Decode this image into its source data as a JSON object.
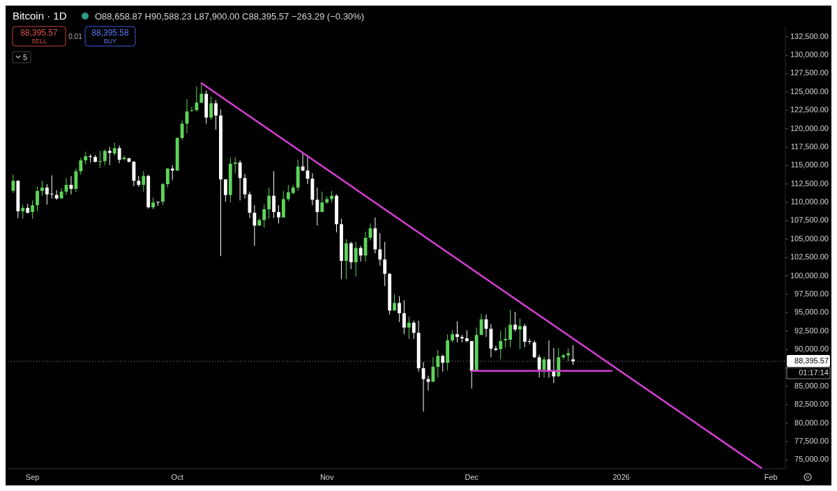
{
  "chart_data": {
    "type": "candlestick",
    "title": "Bitcoin · 1D",
    "subtitle": "O88,658.87 H90,588.23 L87,900.00 C88,395.57 −263.29 (−0.30%)",
    "annotations": [
      "88,395.57",
      "SELL",
      "0.01",
      "88,395.58",
      "BUY",
      "5",
      "01:17:14"
    ],
    "x": [
      "2025-08-28",
      "2025-08-29",
      "2025-08-30",
      "2025-08-31",
      "2025-09-01",
      "2025-09-02",
      "2025-09-03",
      "2025-09-04",
      "2025-09-05",
      "2025-09-06",
      "2025-09-07",
      "2025-09-08",
      "2025-09-09",
      "2025-09-10",
      "2025-09-11",
      "2025-09-12",
      "2025-09-13",
      "2025-09-14",
      "2025-09-15",
      "2025-09-16",
      "2025-09-17",
      "2025-09-18",
      "2025-09-19",
      "2025-09-20",
      "2025-09-21",
      "2025-09-22",
      "2025-09-23",
      "2025-09-24",
      "2025-09-25",
      "2025-09-26",
      "2025-09-27",
      "2025-09-28",
      "2025-09-29",
      "2025-09-30",
      "2025-10-01",
      "2025-10-02",
      "2025-10-03",
      "2025-10-04",
      "2025-10-05",
      "2025-10-06",
      "2025-10-07",
      "2025-10-08",
      "2025-10-09",
      "2025-10-10",
      "2025-10-11",
      "2025-10-12",
      "2025-10-13",
      "2025-10-14",
      "2025-10-15",
      "2025-10-16",
      "2025-10-17",
      "2025-10-18",
      "2025-10-19",
      "2025-10-20",
      "2025-10-21",
      "2025-10-22",
      "2025-10-23",
      "2025-10-24",
      "2025-10-25",
      "2025-10-26",
      "2025-10-27",
      "2025-10-28",
      "2025-10-29",
      "2025-10-30",
      "2025-10-31",
      "2025-11-01",
      "2025-11-02",
      "2025-11-03",
      "2025-11-04",
      "2025-11-05",
      "2025-11-06",
      "2025-11-07",
      "2025-11-08",
      "2025-11-09",
      "2025-11-10",
      "2025-11-11",
      "2025-11-12",
      "2025-11-13",
      "2025-11-14",
      "2025-11-15",
      "2025-11-16",
      "2025-11-17",
      "2025-11-18",
      "2025-11-19",
      "2025-11-20",
      "2025-11-21",
      "2025-11-22",
      "2025-11-23",
      "2025-11-24",
      "2025-11-25",
      "2025-11-26",
      "2025-11-27",
      "2025-11-28",
      "2025-11-29",
      "2025-11-30",
      "2025-12-01",
      "2025-12-02",
      "2025-12-03",
      "2025-12-04",
      "2025-12-05",
      "2025-12-06",
      "2025-12-07",
      "2025-12-08",
      "2025-12-09",
      "2025-12-10",
      "2025-12-11",
      "2025-12-12",
      "2025-12-13",
      "2025-12-14",
      "2025-12-15",
      "2025-12-16",
      "2025-12-17",
      "2025-12-18",
      "2025-12-19",
      "2025-12-20",
      "2025-12-21",
      "2025-12-22"
    ],
    "ohlc": [
      [
        111576,
        113764,
        111271,
        112930
      ],
      [
        112930,
        113000,
        107860,
        108780
      ],
      [
        108780,
        109700,
        107760,
        109240
      ],
      [
        109240,
        109800,
        108500,
        108590
      ],
      [
        108690,
        110260,
        107760,
        109610
      ],
      [
        109610,
        112100,
        108780,
        111550
      ],
      [
        111550,
        112930,
        110900,
        112010
      ],
      [
        112010,
        112470,
        109700,
        111090
      ],
      [
        111180,
        113670,
        110530,
        111090
      ],
      [
        111000,
        111640,
        110350,
        110530
      ],
      [
        110530,
        111920,
        110530,
        111460
      ],
      [
        111460,
        113300,
        111000,
        112380
      ],
      [
        112380,
        113580,
        111090,
        111830
      ],
      [
        111830,
        114590,
        111370,
        114220
      ],
      [
        114220,
        116070,
        113760,
        115700
      ],
      [
        115700,
        116900,
        115150,
        116260
      ],
      [
        116260,
        116530,
        115420,
        116160
      ],
      [
        116160,
        116440,
        115420,
        115520
      ],
      [
        115520,
        116990,
        114690,
        115610
      ],
      [
        115610,
        117180,
        115060,
        116990
      ],
      [
        116990,
        117550,
        115060,
        116720
      ],
      [
        116630,
        118100,
        116350,
        117360
      ],
      [
        117360,
        117730,
        115330,
        115790
      ],
      [
        115880,
        116350,
        115700,
        116070
      ],
      [
        115980,
        116070,
        115420,
        115520
      ],
      [
        115520,
        115610,
        112190,
        112930
      ],
      [
        112930,
        113580,
        112100,
        112380
      ],
      [
        112380,
        114220,
        111460,
        113580
      ],
      [
        113580,
        113760,
        109150,
        109330
      ],
      [
        109330,
        110630,
        109060,
        109980
      ],
      [
        110080,
        110080,
        109520,
        109980
      ],
      [
        110080,
        112650,
        109610,
        112470
      ],
      [
        112470,
        114690,
        112010,
        114590
      ],
      [
        114590,
        115060,
        113030,
        114320
      ],
      [
        114320,
        118840,
        114320,
        118750
      ],
      [
        118750,
        121150,
        118470,
        120690
      ],
      [
        120690,
        124010,
        119390,
        122350
      ],
      [
        122440,
        122990,
        122260,
        122530
      ],
      [
        122530,
        125760,
        122350,
        123550
      ],
      [
        123550,
        126220,
        123460,
        124750
      ],
      [
        124750,
        125210,
        120690,
        121520
      ],
      [
        121520,
        124380,
        121240,
        123460
      ],
      [
        123460,
        123920,
        119860,
        121800
      ],
      [
        121800,
        122620,
        102690,
        113120
      ],
      [
        113120,
        113120,
        110070,
        111000
      ],
      [
        111000,
        116070,
        109980,
        115240
      ],
      [
        115240,
        116160,
        113950,
        115420
      ],
      [
        115420,
        115700,
        110260,
        113300
      ],
      [
        113300,
        113860,
        110530,
        111090
      ],
      [
        111090,
        111460,
        107860,
        108590
      ],
      [
        108590,
        109610,
        104070,
        106840
      ],
      [
        106840,
        107860,
        106840,
        107580
      ],
      [
        107580,
        109700,
        106560,
        109060
      ],
      [
        109060,
        112010,
        107760,
        110900
      ],
      [
        110900,
        114220,
        107860,
        108690
      ],
      [
        108690,
        109610,
        107120,
        107950
      ],
      [
        107950,
        111550,
        107950,
        110440
      ],
      [
        110440,
        112380,
        110170,
        111370
      ],
      [
        111270,
        112380,
        111090,
        112010
      ],
      [
        112010,
        115790,
        111550,
        114870
      ],
      [
        114870,
        116630,
        114220,
        114320
      ],
      [
        114320,
        116350,
        112470,
        113210
      ],
      [
        113210,
        113950,
        109610,
        110350
      ],
      [
        110350,
        112010,
        106840,
        108690
      ],
      [
        108690,
        111460,
        108690,
        109980
      ],
      [
        109980,
        110810,
        109800,
        110440
      ],
      [
        110440,
        111550,
        109980,
        110900
      ],
      [
        110900,
        111090,
        105920,
        107030
      ],
      [
        107030,
        107770,
        99550,
        102040
      ],
      [
        102040,
        104990,
        99550,
        104440
      ],
      [
        104440,
        104630,
        100930,
        101860
      ],
      [
        101860,
        104630,
        99920,
        103800
      ],
      [
        103800,
        104070,
        101950,
        102780
      ],
      [
        102780,
        106010,
        101950,
        105180
      ],
      [
        105180,
        107120,
        104810,
        106470
      ],
      [
        106470,
        107950,
        103060,
        103610
      ],
      [
        103610,
        105830,
        101400,
        102230
      ],
      [
        102230,
        104630,
        98630,
        100290
      ],
      [
        100290,
        100380,
        94750,
        95300
      ],
      [
        95300,
        97520,
        95300,
        96320
      ],
      [
        96320,
        97240,
        93740,
        94930
      ],
      [
        94930,
        96690,
        92070,
        92990
      ],
      [
        92990,
        94470,
        91430,
        93640
      ],
      [
        93640,
        93920,
        91430,
        92260
      ],
      [
        92260,
        93920,
        87000,
        87460
      ],
      [
        87460,
        88290,
        81550,
        85980
      ],
      [
        85980,
        86440,
        84410,
        85610
      ],
      [
        85610,
        88940,
        85610,
        87640
      ],
      [
        87640,
        89950,
        86170,
        89120
      ],
      [
        89120,
        89300,
        86990,
        88200
      ],
      [
        88200,
        92070,
        87180,
        91240
      ],
      [
        91240,
        92630,
        90970,
        92070
      ],
      [
        92070,
        93830,
        90970,
        91700
      ],
      [
        91700,
        91980,
        90970,
        91520
      ],
      [
        91520,
        92630,
        90970,
        91150
      ],
      [
        91150,
        91150,
        84690,
        87090
      ],
      [
        87090,
        92990,
        87090,
        91980
      ],
      [
        91980,
        94840,
        91980,
        94100
      ],
      [
        94100,
        94750,
        91700,
        92810
      ],
      [
        92810,
        93460,
        88940,
        90130
      ],
      [
        90130,
        90500,
        89770,
        89950
      ],
      [
        90040,
        92530,
        88660,
        91150
      ],
      [
        91240,
        93000,
        90220,
        91430
      ],
      [
        91330,
        95400,
        90320,
        93370
      ],
      [
        93370,
        95120,
        92440,
        92720
      ],
      [
        92720,
        94200,
        90040,
        93180
      ],
      [
        93180,
        93460,
        90320,
        91060
      ],
      [
        91150,
        91430,
        90690,
        91060
      ],
      [
        90970,
        91240,
        88850,
        88940
      ],
      [
        88940,
        89300,
        86170,
        87270
      ],
      [
        87270,
        89030,
        86170,
        88660
      ],
      [
        88660,
        91240,
        86170,
        87090
      ],
      [
        87090,
        90220,
        85430,
        86350
      ],
      [
        86350,
        90220,
        86350,
        88940
      ],
      [
        88940,
        89400,
        88660,
        89210
      ],
      [
        89210,
        90130,
        88380,
        89490
      ],
      [
        88658.87,
        90588.23,
        87900.0,
        88395.57
      ]
    ],
    "colors": [
      "#5ed45a",
      "#ffffff",
      "#5ed45a",
      "#ffffff",
      "#5ed45a",
      "#5ed45a",
      "#5ed45a",
      "#ffffff",
      "#ffffff",
      "#ffffff",
      "#5ed45a",
      "#5ed45a",
      "#ffffff",
      "#5ed45a",
      "#5ed45a",
      "#5ed45a",
      "#ffffff",
      "#ffffff",
      "#5ed45a",
      "#5ed45a",
      "#ffffff",
      "#5ed45a",
      "#ffffff",
      "#5ed45a",
      "#ffffff",
      "#ffffff",
      "#ffffff",
      "#5ed45a",
      "#ffffff",
      "#5ed45a",
      "#ffffff",
      "#5ed45a",
      "#5ed45a",
      "#ffffff",
      "#5ed45a",
      "#5ed45a",
      "#5ed45a",
      "#5ed45a",
      "#5ed45a",
      "#5ed45a",
      "#ffffff",
      "#5ed45a",
      "#ffffff",
      "#ffffff",
      "#ffffff",
      "#5ed45a",
      "#5ed45a",
      "#ffffff",
      "#ffffff",
      "#ffffff",
      "#ffffff",
      "#5ed45a",
      "#5ed45a",
      "#5ed45a",
      "#ffffff",
      "#ffffff",
      "#5ed45a",
      "#5ed45a",
      "#5ed45a",
      "#5ed45a",
      "#ffffff",
      "#ffffff",
      "#ffffff",
      "#ffffff",
      "#5ed45a",
      "#5ed45a",
      "#5ed45a",
      "#ffffff",
      "#ffffff",
      "#5ed45a",
      "#ffffff",
      "#5ed45a",
      "#ffffff",
      "#5ed45a",
      "#5ed45a",
      "#ffffff",
      "#ffffff",
      "#ffffff",
      "#ffffff",
      "#5ed45a",
      "#ffffff",
      "#ffffff",
      "#5ed45a",
      "#ffffff",
      "#ffffff",
      "#ffffff",
      "#ffffff",
      "#5ed45a",
      "#5ed45a",
      "#ffffff",
      "#5ed45a",
      "#5ed45a",
      "#ffffff",
      "#ffffff",
      "#ffffff",
      "#ffffff",
      "#5ed45a",
      "#5ed45a",
      "#ffffff",
      "#ffffff",
      "#ffffff",
      "#5ed45a",
      "#5ed45a",
      "#5ed45a",
      "#ffffff",
      "#5ed45a",
      "#ffffff",
      "#ffffff",
      "#ffffff",
      "#ffffff",
      "#5ed45a",
      "#ffffff",
      "#ffffff",
      "#5ed45a",
      "#5ed45a",
      "#5ed45a",
      "#ffffff"
    ],
    "series": [
      {
        "type": "line",
        "x": [
          "2025-10-06",
          "2026-01-30"
        ],
        "values": [
          126200,
          73900
        ],
        "color": "#d63fd6"
      },
      {
        "type": "line",
        "x": [
          "2025-12-01",
          "2025-12-30"
        ],
        "values": [
          87100,
          87100
        ],
        "color": "#d63fd6"
      }
    ],
    "xlim": [
      "2025-08-27",
      "2026-02-04"
    ],
    "xticks": [
      {
        "value": "2025-09-01",
        "label": "Sep"
      },
      {
        "value": "2025-10-01",
        "label": "Oct"
      },
      {
        "value": "2025-11-01",
        "label": "Nov"
      },
      {
        "value": "2025-12-01",
        "label": "Dec"
      },
      {
        "value": "2026-01-01",
        "label": "2026"
      },
      {
        "value": "2026-02-01",
        "label": "Feb"
      }
    ],
    "ylim": [
      73800,
      133900
    ],
    "yticks": [
      {
        "value": 75000,
        "label": "75,000.00"
      },
      {
        "value": 77500,
        "label": "77,500.00"
      },
      {
        "value": 80000,
        "label": "80,000.00"
      },
      {
        "value": 82500,
        "label": "82,500.00"
      },
      {
        "value": 85000,
        "label": "85,000.00"
      },
      {
        "value": 87500,
        "label": null
      },
      {
        "value": 90000,
        "label": "90,000.00"
      },
      {
        "value": 92500,
        "label": "92,500.00"
      },
      {
        "value": 95000,
        "label": "95,000.00"
      },
      {
        "value": 97500,
        "label": "97,500.00"
      },
      {
        "value": 100000,
        "label": "100,000.00"
      },
      {
        "value": 102500,
        "label": "102,500.00"
      },
      {
        "value": 105000,
        "label": "105,000.00"
      },
      {
        "value": 107500,
        "label": "107,500.00"
      },
      {
        "value": 110000,
        "label": "110,000.00"
      },
      {
        "value": 112500,
        "label": "112,500.00"
      },
      {
        "value": 115000,
        "label": "115,000.00"
      },
      {
        "value": 117500,
        "label": "117,500.00"
      },
      {
        "value": 120000,
        "label": "120,000.00"
      },
      {
        "value": 122500,
        "label": "122,500.00"
      },
      {
        "value": 125000,
        "label": "125,000.00"
      },
      {
        "value": 127500,
        "label": "127,500.00"
      },
      {
        "value": 130000,
        "label": "130,000.00"
      },
      {
        "value": 132500,
        "label": "132,500.00"
      }
    ],
    "ref_lines": [
      {
        "axis": "y",
        "value": 88395.57,
        "label": "88,395.57",
        "line_style": "dotted",
        "color": "#9a9a9a"
      }
    ]
  }
}
